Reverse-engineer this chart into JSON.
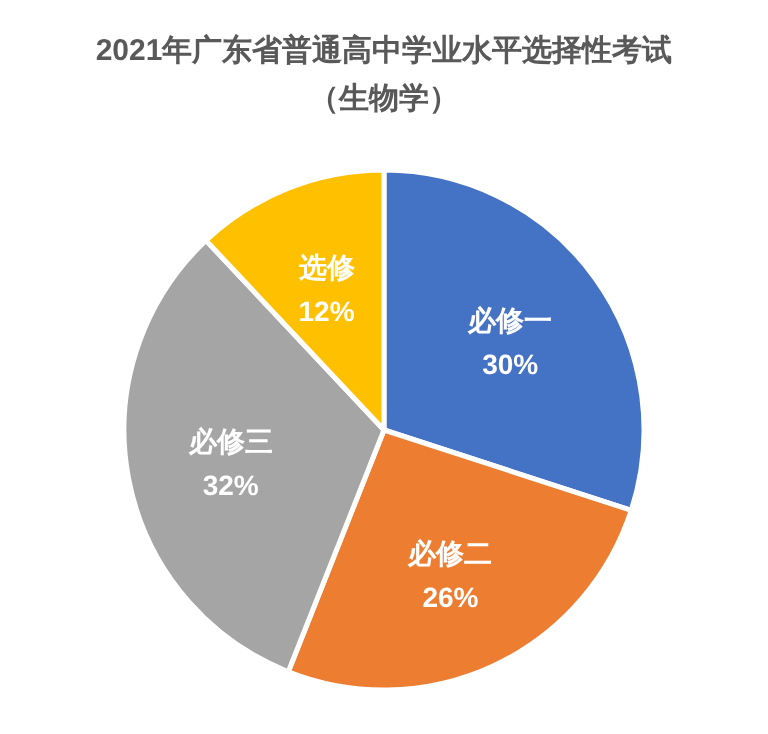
{
  "chart_data": {
    "type": "pie",
    "title": "2021年广东省普通高中学业水平选择性考试",
    "subtitle": "（生物学）",
    "categories": [
      "必修一",
      "必修二",
      "必修三",
      "选修"
    ],
    "values": [
      30,
      26,
      32,
      12
    ],
    "value_labels": [
      "30%",
      "26%",
      "32%",
      "12%"
    ],
    "colors": [
      "#4472c4",
      "#ed7d31",
      "#a5a5a5",
      "#ffc000"
    ],
    "legend": false
  }
}
